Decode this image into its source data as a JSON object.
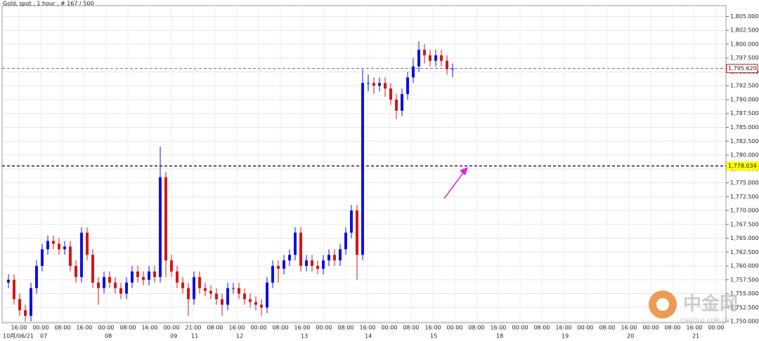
{
  "chart_data": {
    "type": "candlestick",
    "title": "Gold, spot , 1 hour , # 167 / 500",
    "time_labels": [
      "16:00",
      "00:00",
      "08:00",
      "16:00",
      "00:00",
      "08:00",
      "16:00",
      "00:00",
      "21:00",
      "08:00",
      "16:00",
      "00:00",
      "08:00",
      "16:00",
      "00:00",
      "08:00",
      "16:00",
      "00:00",
      "08:00",
      "16:00",
      "00:00",
      "08:00",
      "16:00",
      "00:00",
      "08:00",
      "16:00",
      "00:00",
      "08:00",
      "16:00",
      "00:00",
      "08:00",
      "16:00",
      "00:00"
    ],
    "date_labels": [
      "10月/06/21",
      "07",
      "08",
      "09",
      "11",
      "12",
      "13",
      "14",
      "15",
      "18",
      "19",
      "20",
      "21"
    ],
    "open": [
      1757,
      1757.5,
      1754,
      1752,
      1751,
      1756,
      1760,
      1763,
      1764.5,
      1764,
      1763,
      1763.5,
      1760,
      1758,
      1766,
      1762,
      1757,
      1756,
      1758,
      1757,
      1756,
      1755,
      1757,
      1759,
      1758,
      1757.5,
      1759,
      1758,
      1776,
      1761,
      1759,
      1757,
      1756,
      1754,
      1758,
      1756,
      1755.5,
      1755,
      1754,
      1753,
      1756,
      1756,
      1755,
      1754,
      1753.5,
      1753,
      1752.5,
      1757,
      1760,
      1759.5,
      1761,
      1762,
      1766,
      1760,
      1761,
      1760,
      1759.5,
      1761,
      1762,
      1761,
      1763,
      1766,
      1770,
      1762,
      1793,
      1793,
      1792.5,
      1793,
      1792,
      1790,
      1788,
      1791,
      1794,
      1796,
      1799,
      1798,
      1797,
      1798,
      1797,
      1795.5
    ],
    "high": [
      1758.5,
      1758.5,
      1755,
      1753,
      1757,
      1761,
      1764,
      1765.5,
      1765.5,
      1765,
      1764.5,
      1764.5,
      1761,
      1767,
      1767,
      1763,
      1758,
      1759,
      1759,
      1758,
      1757,
      1758,
      1760,
      1760,
      1759,
      1760,
      1760,
      1781.5,
      1777,
      1762,
      1760,
      1758,
      1757,
      1759,
      1759,
      1757,
      1756.5,
      1756,
      1755,
      1757,
      1757,
      1757,
      1756,
      1755,
      1754.5,
      1754,
      1758,
      1761,
      1761,
      1762,
      1763,
      1767,
      1767,
      1762,
      1762,
      1761,
      1762,
      1763,
      1763,
      1764,
      1767,
      1771,
      1771,
      1795.5,
      1794.5,
      1794,
      1794,
      1794,
      1793,
      1791,
      1792,
      1795,
      1797.5,
      1800.5,
      1800,
      1799,
      1799,
      1799,
      1798,
      1796.5
    ],
    "low": [
      1756,
      1753,
      1751,
      1750,
      1750,
      1755,
      1759,
      1762,
      1763,
      1762,
      1762,
      1759,
      1757,
      1757,
      1761,
      1756,
      1753,
      1755,
      1756,
      1755,
      1754,
      1754,
      1756,
      1757,
      1756.5,
      1756.5,
      1757,
      1757,
      1758,
      1758,
      1756,
      1755,
      1751,
      1753,
      1755,
      1754.5,
      1754,
      1753,
      1751,
      1752,
      1755,
      1754,
      1753,
      1752.5,
      1752,
      1751,
      1751.5,
      1756,
      1757,
      1758.5,
      1760,
      1761,
      1759,
      1759,
      1759,
      1758.5,
      1758.5,
      1760,
      1760,
      1760,
      1762,
      1765,
      1757.5,
      1761,
      1791.5,
      1791,
      1791.5,
      1790.5,
      1789,
      1786.5,
      1787,
      1790,
      1793,
      1795,
      1796.5,
      1796,
      1796,
      1796,
      1794.5,
      1794
    ],
    "close": [
      1757.5,
      1754,
      1752,
      1751,
      1756,
      1760,
      1763,
      1764.5,
      1764,
      1763,
      1763.5,
      1760,
      1758,
      1766,
      1762,
      1757,
      1756,
      1758,
      1757,
      1756,
      1755,
      1757,
      1759,
      1758,
      1757.5,
      1759,
      1758,
      1776,
      1761,
      1759,
      1757,
      1756,
      1754,
      1758,
      1756,
      1755.5,
      1755,
      1754,
      1753,
      1756,
      1756,
      1755,
      1754,
      1753.5,
      1753,
      1752.5,
      1757,
      1760,
      1759.5,
      1761,
      1762,
      1766,
      1760,
      1761,
      1760,
      1759.5,
      1761,
      1762,
      1761,
      1763,
      1766,
      1770,
      1762,
      1793,
      1793,
      1792.5,
      1793,
      1792,
      1790,
      1788,
      1791,
      1794,
      1796,
      1799,
      1798,
      1797,
      1798,
      1797,
      1795.5,
      1795.6
    ],
    "up_color": "#1010e0",
    "down_color": "#d01818",
    "ylim": [
      1749.75,
      1806.96
    ],
    "yticks": [
      {
        "value": 1750,
        "label": "1,750.000"
      },
      {
        "value": 1752.5,
        "label": "1,752.500"
      },
      {
        "value": 1755,
        "label": "1,755.000"
      },
      {
        "value": 1757.5,
        "label": "1,757.500"
      },
      {
        "value": 1760,
        "label": "1,760.000"
      },
      {
        "value": 1762.5,
        "label": "1,762.500"
      },
      {
        "value": 1765,
        "label": "1,765.000"
      },
      {
        "value": 1767.5,
        "label": "1,767.500"
      },
      {
        "value": 1770,
        "label": "1,770.000"
      },
      {
        "value": 1772.5,
        "label": "1,772.500"
      },
      {
        "value": 1775,
        "label": "1,775.000"
      },
      {
        "value": 1777.5,
        "label": "1,777.500"
      },
      {
        "value": 1780,
        "label": "1,780.000"
      },
      {
        "value": 1782.5,
        "label": "1,782.500"
      },
      {
        "value": 1785,
        "label": "1,785.000"
      },
      {
        "value": 1787.5,
        "label": "1,787.500"
      },
      {
        "value": 1790,
        "label": "1,790.000"
      },
      {
        "value": 1792.5,
        "label": "1,792.500"
      },
      {
        "value": 1795,
        "label": "1,795.000"
      },
      {
        "value": 1797.5,
        "label": "1,797.500"
      },
      {
        "value": 1800,
        "label": "1,800.000"
      },
      {
        "value": 1802.5,
        "label": "1,802.500"
      },
      {
        "value": 1805,
        "label": "1,805.000"
      }
    ],
    "grid": true,
    "reference_lines": [
      {
        "value": 1795.62,
        "label": "1,795.620",
        "color": "#3a3aa0",
        "label_bg": "#ffffff",
        "label_border": "#d01818"
      },
      {
        "value": 1778.034,
        "label": "1,778.034",
        "color": "#2a1050",
        "label_bg": "#ffff00",
        "label_border": "#ffff00"
      }
    ]
  },
  "watermark": {
    "brand": "中金网",
    "site": "CNGOLD.COM.CN"
  }
}
